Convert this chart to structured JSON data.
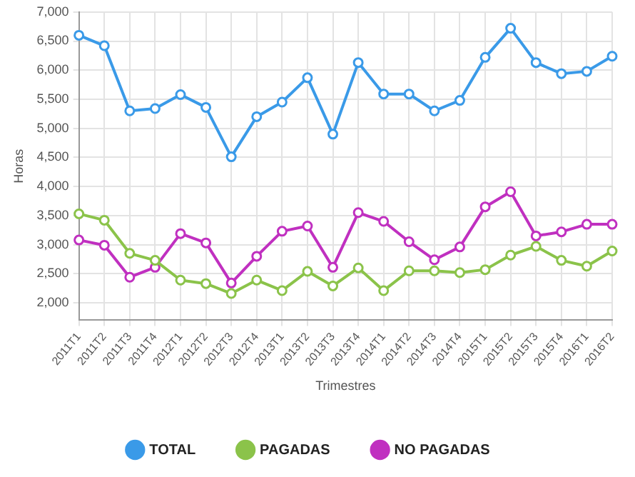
{
  "chart_data": {
    "type": "line",
    "xlabel": "Trimestres",
    "ylabel": "Horas",
    "categories": [
      "2011T1",
      "2011T2",
      "2011T3",
      "2011T4",
      "2012T1",
      "2012T2",
      "2012T3",
      "2012T4",
      "2013T1",
      "2013T2",
      "2013T3",
      "2013T4",
      "2014T1",
      "2014T2",
      "2014T3",
      "2014T4",
      "2015T1",
      "2015T2",
      "2015T3",
      "2015T4",
      "2016T1",
      "2016T2"
    ],
    "series": [
      {
        "name": "TOTAL",
        "color": "#3a9ae8",
        "values": [
          6600,
          6420,
          5300,
          5340,
          5580,
          5360,
          4510,
          5200,
          5450,
          5870,
          4900,
          6130,
          5590,
          5590,
          5300,
          5480,
          6220,
          6720,
          6130,
          5940,
          5980,
          6240
        ]
      },
      {
        "name": "PAGADAS",
        "color": "#8bc34a",
        "values": [
          3530,
          3420,
          2850,
          2730,
          2390,
          2330,
          2160,
          2390,
          2210,
          2540,
          2290,
          2600,
          2210,
          2550,
          2550,
          2520,
          2570,
          2820,
          2970,
          2730,
          2630,
          2890
        ]
      },
      {
        "name": "NO PAGADAS",
        "color": "#c030c0",
        "values": [
          3080,
          2990,
          2440,
          2610,
          3190,
          3030,
          2340,
          2800,
          3230,
          3320,
          2610,
          3550,
          3400,
          3050,
          2740,
          2960,
          3650,
          3910,
          3150,
          3220,
          3350,
          3350
        ]
      }
    ],
    "ylim": [
      1700,
      7000
    ],
    "yticks": [
      {
        "value": 2000,
        "label": "2,000"
      },
      {
        "value": 2500,
        "label": "2,500"
      },
      {
        "value": 3000,
        "label": "3,000"
      },
      {
        "value": 3500,
        "label": "3,500"
      },
      {
        "value": 4000,
        "label": "4,000"
      },
      {
        "value": 4500,
        "label": "4,500"
      },
      {
        "value": 5000,
        "label": "5,000"
      },
      {
        "value": 5500,
        "label": "5,500"
      },
      {
        "value": 6000,
        "label": "6,000"
      },
      {
        "value": 6500,
        "label": "6,500"
      },
      {
        "value": 7000,
        "label": "7,000"
      }
    ],
    "grid": true,
    "legend": "bottom",
    "marker": "circle",
    "line_style": "solid"
  }
}
